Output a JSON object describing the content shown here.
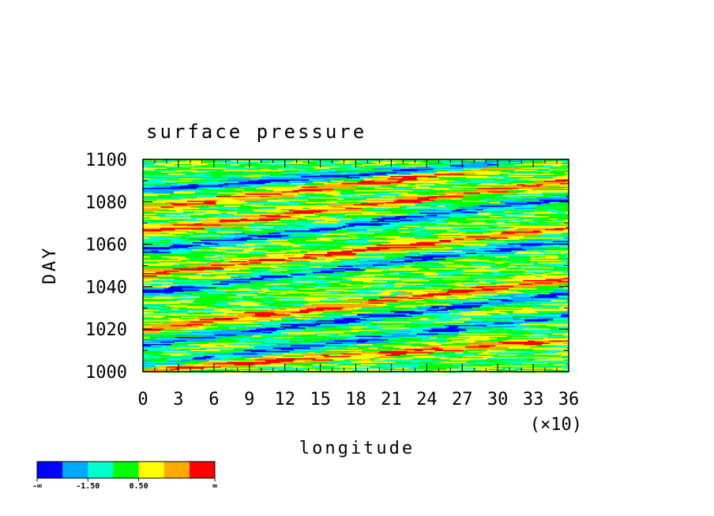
{
  "chart_data": {
    "type": "heatmap",
    "title": "surface pressure",
    "xlabel": "longitude",
    "ylabel": "DAY",
    "x_multiplier_label": "(×10)",
    "xlim": [
      0,
      36
    ],
    "ylim": [
      1000,
      1100
    ],
    "x_ticks": [
      "0",
      "3",
      "6",
      "9",
      "12",
      "15",
      "18",
      "21",
      "24",
      "27",
      "30",
      "33",
      "36"
    ],
    "y_ticks": [
      "1000",
      "1020",
      "1040",
      "1060",
      "1080",
      "1100"
    ],
    "colorbar": {
      "colors": [
        "#0000ff",
        "#00aaff",
        "#00ffcc",
        "#00ff00",
        "#ffff00",
        "#ffaa00",
        "#ff0000"
      ],
      "labels": [
        "-∞",
        "-1.50",
        "0.50",
        "∞"
      ]
    },
    "bands": [
      {
        "day_at_x0": 1046,
        "day_at_x36": 1068,
        "level": "high"
      },
      {
        "day_at_x0": 1037,
        "day_at_x36": 1062,
        "level": "low"
      },
      {
        "day_at_x0": 1057,
        "day_at_x36": 1082,
        "level": "low"
      },
      {
        "day_at_x0": 1077,
        "day_at_x36": 1100,
        "level": "high"
      },
      {
        "day_at_x0": 1086,
        "day_at_x36": 1100,
        "level": "low"
      },
      {
        "day_at_x0": 1003,
        "day_at_x36": 1027,
        "level": "low"
      },
      {
        "day_at_x0": 1013,
        "day_at_x36": 1037,
        "level": "low"
      },
      {
        "day_at_x0": 1020,
        "day_at_x36": 1044,
        "level": "high"
      },
      {
        "day_at_x0": 1001,
        "day_at_x36": 1015,
        "level": "high"
      },
      {
        "day_at_x0": 1066,
        "day_at_x36": 1090,
        "level": "high"
      }
    ]
  }
}
